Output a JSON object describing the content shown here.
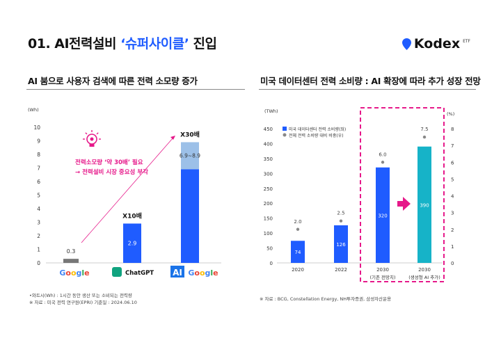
{
  "title": {
    "prefix": "01. AI전력설비 ",
    "highlight": "‘슈퍼사이클’",
    "suffix": " 진입"
  },
  "logo": {
    "text": "Kodex",
    "sub": "ETF",
    "brand_color": "#1f5cff"
  },
  "left": {
    "heading": "AI 붐으로 사용자 검색에 따른 전력 소모량 증가",
    "footnotes": [
      "•와트시(Wh) : 1시간 동안 생산 또는 소비되는 전력량",
      "※ 자료 : 미국 전력 연구원(EPRI) 기준일 : 2024.06.10"
    ],
    "callout": [
      "전력소모량 ‘약 30배’ 필요",
      "→ 전력설비 시장 중요성 부각"
    ],
    "icon": "lightbulb-gear-icon"
  },
  "right": {
    "heading": "미국 데이터센터 전력 소비량 : AI 확장에 따라 추가 성장 전망",
    "footnotes": [
      "※ 자료 : BCG, Constellation Energy, NH투자증권, 삼성자산운용"
    ]
  },
  "chart_data": [
    {
      "type": "bar",
      "ylabel": "(Wh)",
      "ylim": [
        0,
        10
      ],
      "yticks": [
        0,
        1,
        2,
        3,
        4,
        5,
        6,
        7,
        8,
        9,
        10
      ],
      "categories": [
        "Google",
        "ChatGPT",
        "AI Google"
      ],
      "values": [
        0.3,
        2.9,
        8.9
      ],
      "range_low": [
        null,
        null,
        6.9
      ],
      "data_labels": [
        "0.3",
        "2.9",
        "6.9~8.9"
      ],
      "multipliers": [
        "",
        "X10배",
        "X30배"
      ],
      "colors": {
        "google": "#777777",
        "main": "#1f5cff",
        "range": "#9cc0e8",
        "accent": "#e6198a"
      }
    },
    {
      "type": "bar+scatter",
      "ylabel_left": "(TWh)",
      "ylabel_right": "(%)",
      "ylim_left": [
        0,
        450
      ],
      "ylim_right": [
        0,
        8
      ],
      "yticks_left": [
        0,
        50,
        100,
        150,
        200,
        250,
        300,
        350,
        400,
        450
      ],
      "yticks_right": [
        0,
        1,
        2,
        3,
        4,
        5,
        6,
        7,
        8
      ],
      "categories": [
        "2020",
        "2022",
        "2030",
        "2030"
      ],
      "sub_categories": [
        "",
        "",
        "(기존 전망치)",
        "(생성형 AI 추가)"
      ],
      "series": [
        {
          "name": "미국 데이터센터 전력 소비량(좌)",
          "type": "bar",
          "values": [
            74,
            126,
            320,
            390
          ]
        },
        {
          "name": "전체 전력 소비량 대비 비중(우)",
          "type": "scatter",
          "values": [
            2.0,
            2.5,
            6.0,
            7.5
          ]
        }
      ],
      "data_labels_bar": [
        "74",
        "126",
        "320",
        "390"
      ],
      "data_labels_dot": [
        "2.0",
        "2.5",
        "6.0",
        "7.5"
      ],
      "colors": {
        "bar": "#1f5cff",
        "bar_ai": "#16b3c8",
        "dot": "#888888",
        "highlight": "#e6198a"
      }
    }
  ]
}
